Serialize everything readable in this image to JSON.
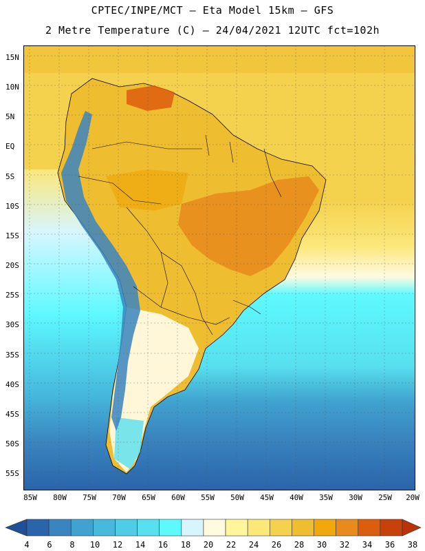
{
  "header": {
    "line1": "CPTEC/INPE/MCT –  Eta Model 15km – GFS",
    "line2": "2 Metre Temperature (C) – 24/04/2021 12UTC fct=102h"
  },
  "lat_labels": [
    "15N",
    "10N",
    "5N",
    "EQ",
    "5S",
    "10S",
    "15S",
    "20S",
    "25S",
    "30S",
    "35S",
    "40S",
    "45S",
    "50S",
    "55S"
  ],
  "lon_labels": [
    "85W",
    "80W",
    "75W",
    "70W",
    "65W",
    "60W",
    "55W",
    "50W",
    "45W",
    "40W",
    "35W",
    "30W",
    "25W",
    "20W"
  ],
  "colorbar": {
    "labels": [
      "4",
      "6",
      "8",
      "10",
      "12",
      "14",
      "16",
      "18",
      "20",
      "22",
      "24",
      "26",
      "28",
      "30",
      "32",
      "34",
      "36",
      "38"
    ],
    "colors": [
      "#1f4f94",
      "#2a64aa",
      "#3a85bf",
      "#40a3cf",
      "#46b9dd",
      "#4fcde6",
      "#57e0ef",
      "#5ef9ff",
      "#d6f6ff",
      "#fffae0",
      "#fff59a",
      "#fbe77a",
      "#f5d24e",
      "#eebd30",
      "#f0a80c",
      "#e88a1c",
      "#dd5d0e",
      "#c7420a",
      "#b8330a"
    ]
  },
  "map_colors": {
    "ocean_warm": "#f5d24e",
    "ocean_mid": "#fbe77a",
    "ocean_cool": "#5ef9ff",
    "ocean_cold": "#3a85bf",
    "ocean_coldest": "#2a64aa",
    "land_hot": "#e88a1c",
    "land_warm": "#eebd30",
    "andes": "#3a85bf",
    "patagonia": "#fffae0"
  }
}
